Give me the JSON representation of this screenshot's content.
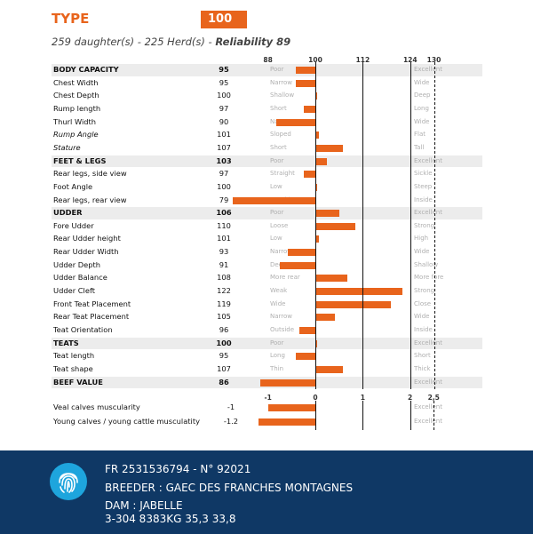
{
  "header": {
    "title": "TYPE",
    "score": "100",
    "daughters_text": "259 daughter(s) - 225 Herd(s) - ",
    "reliability_label": "Reliability 89"
  },
  "scale_top": {
    "ticks": [
      "88",
      "100",
      "112",
      "124",
      "130"
    ],
    "tick_values": [
      88,
      100,
      112,
      124,
      130
    ]
  },
  "scale_bottom": {
    "ticks": [
      "-1",
      "0",
      "1",
      "2",
      "2,5"
    ],
    "tick_values": [
      -1,
      0,
      1,
      2,
      2.5
    ]
  },
  "traits": [
    {
      "label": "BODY CAPACITY",
      "value": "95",
      "bar": 95,
      "low": "Poor",
      "high": "Excellent",
      "bold": true,
      "shade": true
    },
    {
      "label": "Chest Width",
      "value": "95",
      "bar": 95,
      "low": "Narrow",
      "high": "Wide"
    },
    {
      "label": "Chest Depth",
      "value": "100",
      "bar": 100,
      "low": "Shallow",
      "high": "Deep"
    },
    {
      "label": "Rump length",
      "value": "97",
      "bar": 97,
      "low": "Short",
      "high": "Long"
    },
    {
      "label": "Thurl Width",
      "value": "90",
      "bar": 90,
      "low": "Narrow",
      "high": "Wide"
    },
    {
      "label": "Rump Angle",
      "value": "101",
      "bar": 101,
      "low": "Sloped",
      "high": "Flat",
      "italic": true
    },
    {
      "label": "Stature",
      "value": "107",
      "bar": 107,
      "low": "Short",
      "high": "Tall",
      "italic": true
    },
    {
      "label": "FEET & LEGS",
      "value": "103",
      "bar": 103,
      "low": "Poor",
      "high": "Excellent",
      "bold": true,
      "shade": true
    },
    {
      "label": "Rear legs, side view",
      "value": "97",
      "bar": 97,
      "low": "Straight",
      "high": "Sickle"
    },
    {
      "label": "Foot Angle",
      "value": "100",
      "bar": 100,
      "low": "Low",
      "high": "Steep"
    },
    {
      "label": "Rear legs, rear view",
      "value": "79",
      "bar": 79,
      "low": "Outside",
      "high": "Inside"
    },
    {
      "label": "UDDER",
      "value": "106",
      "bar": 106,
      "low": "Poor",
      "high": "Excellent",
      "bold": true,
      "shade": true
    },
    {
      "label": "Fore Udder",
      "value": "110",
      "bar": 110,
      "low": "Loose",
      "high": "Strong"
    },
    {
      "label": "Rear Udder height",
      "value": "101",
      "bar": 101,
      "low": "Low",
      "high": "High"
    },
    {
      "label": "Rear Udder Width",
      "value": "93",
      "bar": 93,
      "low": "Narrow",
      "high": "Wide"
    },
    {
      "label": "Udder Depth",
      "value": "91",
      "bar": 91,
      "low": "Deep",
      "high": "Shallow"
    },
    {
      "label": "Udder Balance",
      "value": "108",
      "bar": 108,
      "low": "More rear",
      "high": "More fore"
    },
    {
      "label": "Udder Cleft",
      "value": "122",
      "bar": 122,
      "low": "Weak",
      "high": "Strong"
    },
    {
      "label": "Front Teat Placement",
      "value": "119",
      "bar": 119,
      "low": "Wide",
      "high": "Close"
    },
    {
      "label": "Rear Teat Placement",
      "value": "105",
      "bar": 105,
      "low": "Narrow",
      "high": "Wide"
    },
    {
      "label": "Teat Orientation",
      "value": "96",
      "bar": 96,
      "low": "Outside",
      "high": "Inside"
    },
    {
      "label": "TEATS",
      "value": "100",
      "bar": 100,
      "low": "Poor",
      "high": "Excellent",
      "bold": true,
      "shade": true
    },
    {
      "label": "Teat length",
      "value": "95",
      "bar": 95,
      "low": "Long",
      "high": "Short"
    },
    {
      "label": "Teat shape",
      "value": "107",
      "bar": 107,
      "low": "Thin",
      "high": "Thick"
    },
    {
      "label": "BEEF VALUE",
      "value": "86",
      "bar": 86,
      "low": "Poor",
      "high": "Excellent",
      "bold": true,
      "shade": true
    }
  ],
  "muscularity": [
    {
      "label": "Veal calves muscularity",
      "value": "-1",
      "bar": -1,
      "low": "Poor",
      "high": "Excellent"
    },
    {
      "label": "Young calves / young cattle musculatity",
      "value": "-1.2",
      "bar": -1.2,
      "low": "Poor",
      "high": "Excellent"
    }
  ],
  "footer": {
    "id_line": "FR 2531536794 - N° 92021",
    "breeder": "BREEDER : GAEC DES FRANCHES MONTAGNES",
    "dam": "DAM : JABELLE",
    "dam_stats": "3-304 8383KG 35,3 33,8"
  },
  "colors": {
    "accent": "#e8641c",
    "footer_bg": "#0f3865",
    "icon_bg": "#1ea5dd"
  },
  "icons": {
    "footer_logo": "fingerprint-icon"
  }
}
